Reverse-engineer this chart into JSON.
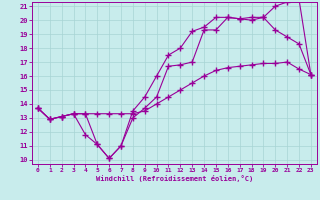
{
  "xlabel": "Windchill (Refroidissement éolien,°C)",
  "line_color": "#990099",
  "bg_color": "#c8ecec",
  "grid_color": "#a8d4d4",
  "xlim": [
    -0.5,
    23.5
  ],
  "ylim": [
    9.7,
    21.3
  ],
  "xticks": [
    0,
    1,
    2,
    3,
    4,
    5,
    6,
    7,
    8,
    9,
    10,
    11,
    12,
    13,
    14,
    15,
    16,
    17,
    18,
    19,
    20,
    21,
    22,
    23
  ],
  "yticks": [
    10,
    11,
    12,
    13,
    14,
    15,
    16,
    17,
    18,
    19,
    20,
    21
  ],
  "line1_x": [
    0,
    1,
    2,
    3,
    4,
    5,
    6,
    7,
    8,
    9,
    10,
    11,
    12,
    13,
    14,
    15,
    16,
    17,
    18,
    19,
    20,
    21,
    22,
    23
  ],
  "line1_y": [
    13.7,
    12.9,
    13.1,
    13.3,
    13.3,
    11.1,
    10.1,
    11.0,
    13.0,
    13.7,
    14.5,
    16.7,
    16.8,
    17.0,
    19.3,
    19.3,
    20.2,
    20.1,
    20.0,
    20.2,
    19.3,
    18.8,
    18.3,
    16.1
  ],
  "line2_x": [
    0,
    1,
    2,
    3,
    4,
    5,
    6,
    7,
    8,
    9,
    10,
    11,
    12,
    13,
    14,
    15,
    16,
    17,
    18,
    19,
    20,
    21,
    22,
    23
  ],
  "line2_y": [
    13.7,
    12.9,
    13.1,
    13.3,
    13.3,
    13.3,
    13.3,
    13.3,
    13.3,
    13.5,
    14.0,
    14.5,
    15.0,
    15.5,
    16.0,
    16.4,
    16.6,
    16.7,
    16.8,
    16.9,
    16.9,
    17.0,
    16.5,
    16.1
  ],
  "line3_x": [
    0,
    1,
    2,
    3,
    4,
    5,
    6,
    7,
    8,
    9,
    10,
    11,
    12,
    13,
    14,
    15,
    16,
    17,
    18,
    19,
    20,
    21,
    22,
    23
  ],
  "line3_y": [
    13.7,
    12.9,
    13.1,
    13.3,
    11.8,
    11.1,
    10.1,
    11.0,
    13.5,
    14.5,
    16.0,
    17.5,
    18.0,
    19.2,
    19.5,
    20.2,
    20.2,
    20.1,
    20.2,
    20.2,
    21.0,
    21.3,
    21.5,
    16.1
  ]
}
